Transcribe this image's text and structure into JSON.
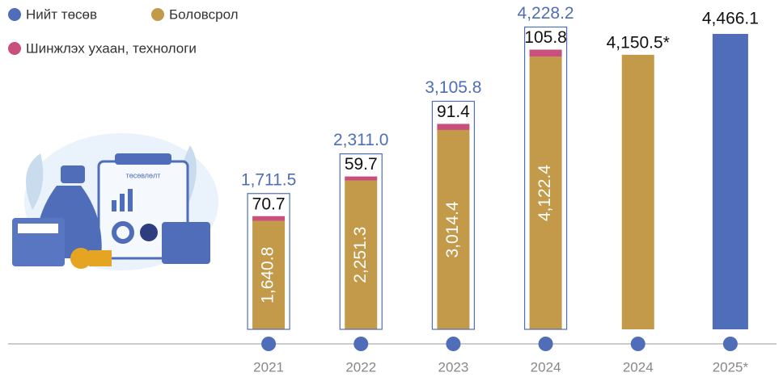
{
  "chart_data": {
    "type": "stacked-bar",
    "categories": [
      "2021",
      "2022",
      "2023",
      "2024",
      "2024",
      "2025*"
    ],
    "series": [
      {
        "name": "Нийт төсөв",
        "color": "#4f6db8",
        "values": [
          1711.5,
          2311.0,
          3105.8,
          4228.2,
          null,
          4466.1
        ],
        "value_labels": [
          "1,711.5",
          "2,311.0",
          "3,105.8",
          "4,228.2",
          null,
          "4,466.1"
        ]
      },
      {
        "name": "Боловсрол",
        "color": "#c29a4a",
        "values": [
          1640.8,
          2251.3,
          3014.4,
          4122.4,
          4150.5,
          null
        ],
        "value_labels": [
          "1,640.8",
          "2,251.3",
          "3,014.4",
          "4,122.4",
          "4,150.5*",
          null
        ]
      },
      {
        "name": "Шинжлэх ухаан, технологи",
        "color": "#c94f7c",
        "values": [
          70.7,
          59.7,
          91.4,
          105.8,
          null,
          null
        ]
      }
    ]
  }
}
